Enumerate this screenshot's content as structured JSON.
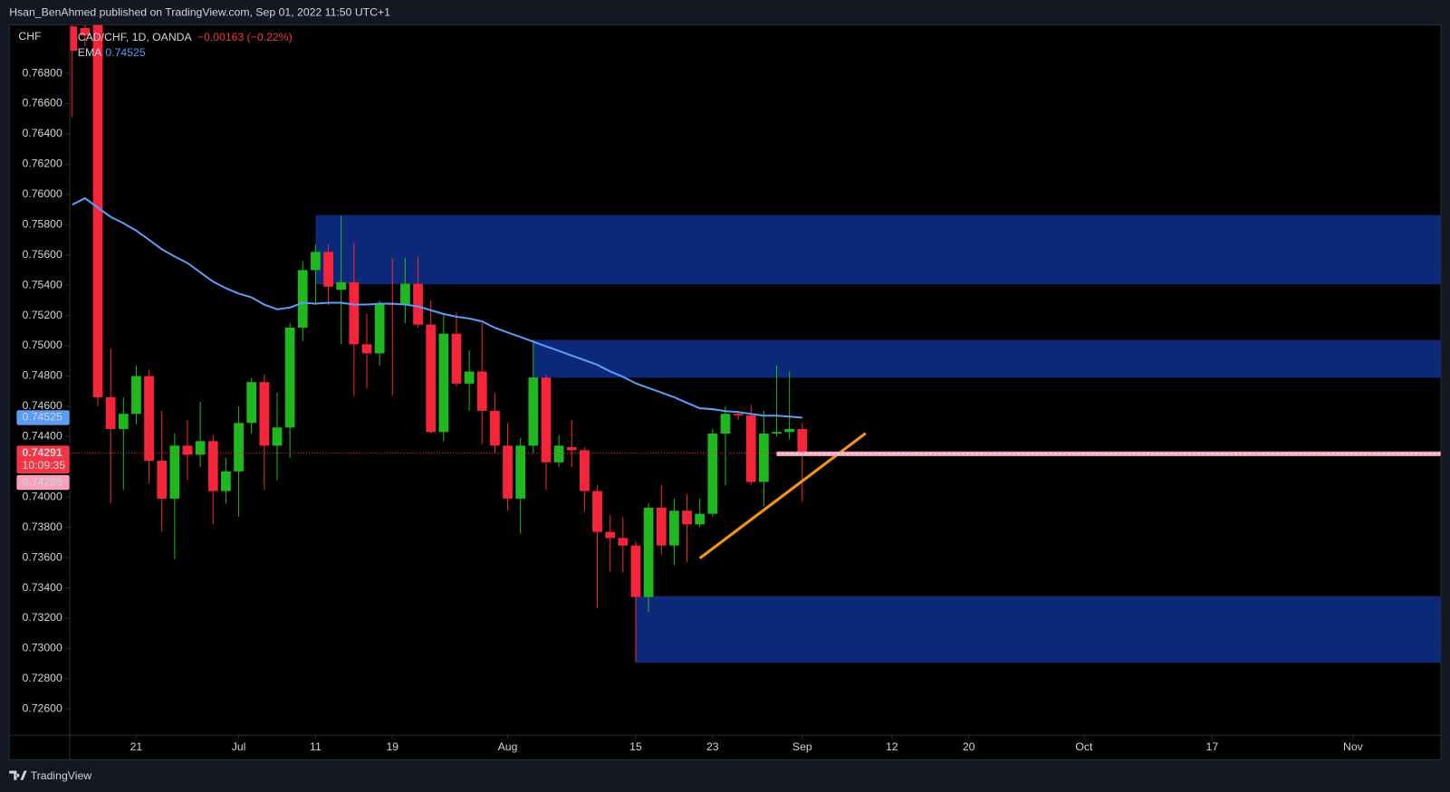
{
  "header": {
    "published": "Hsan_BenAhmed published on TradingView.com, Sep 01, 2022 11:50 UTC+1"
  },
  "footer": {
    "brand": "TradingView"
  },
  "chart_data": {
    "type": "candlestick",
    "symbol": "CAD/CHF, 1D, OANDA",
    "change": "−0.00163 (−0.22%)",
    "y_unit": "CHF",
    "up_color": "#1fb81f",
    "down_color": "#f7253a",
    "open": [
      0.7711,
      0.771,
      0.7718,
      0.7466,
      0.7445,
      0.7455,
      0.748,
      0.7424,
      0.7399,
      0.7434,
      0.7428,
      0.7437,
      0.7404,
      0.7417,
      0.7449,
      0.7476,
      0.7434,
      0.7446,
      0.7512,
      0.755,
      0.7562,
      0.7537,
      0.7542,
      0.7501,
      0.7495,
      0.7528,
      0.7527,
      0.7541,
      0.7514,
      0.7443,
      0.7508,
      0.7475,
      0.7483,
      0.7457,
      0.7434,
      0.7399,
      0.7434,
      0.7479,
      0.7423,
      0.7433,
      0.7431,
      0.7404,
      0.7377,
      0.7373,
      0.7368,
      0.7334,
      0.7393,
      0.7368,
      0.7391,
      0.7382,
      0.7389,
      0.7442,
      0.7455,
      0.7454,
      0.741,
      0.7442,
      0.7443,
      0.7445
    ],
    "high": [
      0.7712,
      0.7712,
      0.772,
      0.7498,
      0.7466,
      0.7487,
      0.7484,
      0.7457,
      0.7442,
      0.7451,
      0.7463,
      0.7441,
      0.7426,
      0.746,
      0.7479,
      0.7481,
      0.7469,
      0.7515,
      0.7556,
      0.7567,
      0.7567,
      0.7586,
      0.7568,
      0.7521,
      0.753,
      0.7558,
      0.7558,
      0.7559,
      0.753,
      0.7521,
      0.7522,
      0.7497,
      0.7515,
      0.7469,
      0.7449,
      0.7439,
      0.7504,
      0.7481,
      0.7441,
      0.7451,
      0.7433,
      0.7408,
      0.7388,
      0.7387,
      0.7371,
      0.7396,
      0.7408,
      0.7399,
      0.7402,
      0.7399,
      0.7445,
      0.746,
      0.7457,
      0.7461,
      0.7457,
      0.7487,
      0.7483,
      0.7449
    ],
    "low": [
      0.7651,
      0.7698,
      0.746,
      0.7396,
      0.7405,
      0.7448,
      0.7409,
      0.7377,
      0.7359,
      0.7411,
      0.742,
      0.7382,
      0.7396,
      0.7387,
      0.7442,
      0.7405,
      0.7411,
      0.7426,
      0.7503,
      0.7527,
      0.7527,
      0.7501,
      0.7467,
      0.7472,
      0.7487,
      0.7467,
      0.7515,
      0.7512,
      0.7442,
      0.7437,
      0.7473,
      0.7457,
      0.7435,
      0.7429,
      0.7391,
      0.7376,
      0.7429,
      0.7405,
      0.742,
      0.742,
      0.739,
      0.7327,
      0.7351,
      0.735,
      0.7291,
      0.7324,
      0.7362,
      0.7355,
      0.7357,
      0.738,
      0.7387,
      0.7408,
      0.7451,
      0.7408,
      0.7394,
      0.744,
      0.7438,
      0.7397
    ],
    "close": [
      0.7695,
      0.7705,
      0.7466,
      0.7445,
      0.7455,
      0.748,
      0.7424,
      0.7399,
      0.7434,
      0.7428,
      0.7437,
      0.7404,
      0.7417,
      0.7449,
      0.7476,
      0.7434,
      0.7446,
      0.7512,
      0.755,
      0.7562,
      0.7539,
      0.7542,
      0.7501,
      0.7495,
      0.7528,
      0.7527,
      0.7541,
      0.7514,
      0.7443,
      0.7508,
      0.7475,
      0.7483,
      0.7457,
      0.7434,
      0.7399,
      0.7434,
      0.7479,
      0.7423,
      0.7434,
      0.7431,
      0.7404,
      0.7377,
      0.7373,
      0.7368,
      0.7334,
      0.7393,
      0.7368,
      0.7391,
      0.7382,
      0.7389,
      0.7442,
      0.7455,
      0.7454,
      0.741,
      0.7442,
      0.7443,
      0.7445,
      0.74291
    ],
    "indicator": {
      "name": "EMA",
      "color": "#5b9cf6",
      "values": [
        0.75932,
        0.75975,
        0.75913,
        0.75852,
        0.7581,
        0.75761,
        0.757,
        0.75638,
        0.7559,
        0.75547,
        0.75485,
        0.75424,
        0.7538,
        0.75345,
        0.7532,
        0.75272,
        0.75241,
        0.75253,
        0.75284,
        0.75278,
        0.75284,
        0.75284,
        0.75272,
        0.75272,
        0.75278,
        0.75278,
        0.75272,
        0.7526,
        0.75235,
        0.7521,
        0.75192,
        0.7518,
        0.75161,
        0.75119,
        0.75088,
        0.75058,
        0.75027,
        0.74996,
        0.74966,
        0.74935,
        0.74905,
        0.74874,
        0.74831,
        0.74795,
        0.74752,
        0.74721,
        0.74691,
        0.7466,
        0.74623,
        0.74587,
        0.74581,
        0.74568,
        0.74562,
        0.7455,
        0.74538,
        0.74538,
        0.74532,
        0.74525
      ]
    },
    "last_price": 0.74291,
    "countdown": "10:09:35",
    "marker_price": 0.74286,
    "marker_start": 55,
    "marker_color": "#f7a1bd",
    "zone_color": "#0c2878",
    "zones": [
      {
        "start": 19,
        "top": 0.75864,
        "bottom": 0.75406
      },
      {
        "start": 36,
        "top": 0.75039,
        "bottom": 0.74789
      },
      {
        "start": 44,
        "top": 0.73346,
        "bottom": 0.72905
      }
    ],
    "trendline": {
      "x": [
        49,
        61.95
      ],
      "y": [
        0.73596,
        0.74422
      ],
      "color": "#f7931a"
    },
    "xlim": [
      -0.15,
      106.85
    ],
    "xticks": [
      {
        "value": 5,
        "label": "21"
      },
      {
        "value": 13,
        "label": "Jul"
      },
      {
        "value": 19,
        "label": "11"
      },
      {
        "value": 25,
        "label": "19"
      },
      {
        "value": 34,
        "label": "Aug"
      },
      {
        "value": 44,
        "label": "15"
      },
      {
        "value": 50,
        "label": "23"
      },
      {
        "value": 57,
        "label": "Sep"
      },
      {
        "value": 64,
        "label": "12"
      },
      {
        "value": 70,
        "label": "20"
      },
      {
        "value": 79,
        "label": "Oct"
      },
      {
        "value": 89,
        "label": "17"
      },
      {
        "value": 100,
        "label": "Nov"
      }
    ],
    "ylim": [
      0.7243,
      0.7712
    ],
    "yticks": [
      {
        "value": 0.726,
        "label": "0.72600"
      },
      {
        "value": 0.728,
        "label": "0.72800"
      },
      {
        "value": 0.73,
        "label": "0.73000"
      },
      {
        "value": 0.732,
        "label": "0.73200"
      },
      {
        "value": 0.734,
        "label": "0.73400"
      },
      {
        "value": 0.736,
        "label": "0.73600"
      },
      {
        "value": 0.738,
        "label": "0.73800"
      },
      {
        "value": 0.74,
        "label": "0.74000"
      },
      {
        "value": 0.742,
        "label": "0.74200"
      },
      {
        "value": 0.744,
        "label": "0.74400"
      },
      {
        "value": 0.746,
        "label": "0.74600"
      },
      {
        "value": 0.748,
        "label": "0.74800"
      },
      {
        "value": 0.75,
        "label": "0.75000"
      },
      {
        "value": 0.752,
        "label": "0.75200"
      },
      {
        "value": 0.754,
        "label": "0.75400"
      },
      {
        "value": 0.756,
        "label": "0.75600"
      },
      {
        "value": 0.758,
        "label": "0.75800"
      },
      {
        "value": 0.76,
        "label": "0.76000"
      },
      {
        "value": 0.762,
        "label": "0.76200"
      },
      {
        "value": 0.764,
        "label": "0.76400"
      },
      {
        "value": 0.766,
        "label": "0.76600"
      },
      {
        "value": 0.768,
        "label": "0.76800"
      }
    ]
  }
}
